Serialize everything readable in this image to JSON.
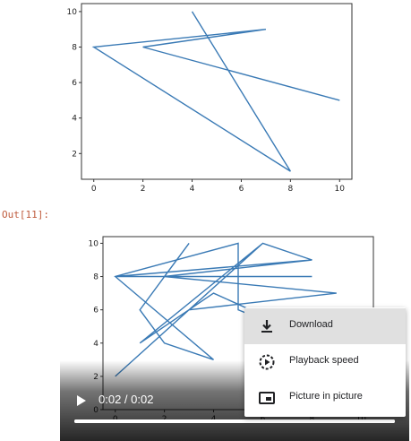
{
  "output_prompt": "Out[11]:",
  "chart_data": [
    {
      "type": "line",
      "x": [
        4,
        8,
        0,
        7,
        2,
        10
      ],
      "y": [
        10,
        1,
        8,
        9,
        8,
        5
      ],
      "xlim": [
        -0.5,
        10.5
      ],
      "ylim": [
        0.55,
        10.45
      ],
      "xticks": [
        0,
        2,
        4,
        6,
        8,
        10
      ],
      "yticks": [
        2,
        4,
        6,
        8,
        10
      ],
      "color": "#3a7ab5"
    },
    {
      "type": "line",
      "x": [
        8,
        2,
        3,
        1,
        2,
        4,
        0,
        5,
        5,
        10,
        4,
        1,
        6,
        8,
        0,
        8,
        2,
        9,
        3,
        6,
        0
      ],
      "y": [
        9,
        8,
        10,
        6,
        4,
        3,
        8,
        10,
        6,
        3,
        7,
        4,
        10,
        9,
        8,
        8,
        8,
        7,
        6,
        10,
        2
      ],
      "xlim": [
        -0.5,
        10.5
      ],
      "ylim": [
        0,
        10.4
      ],
      "xticks": [
        0,
        2,
        4,
        6,
        8,
        10
      ],
      "yticks": [
        0,
        2,
        4,
        6,
        8,
        10
      ],
      "color": "#3a7ab5"
    }
  ],
  "video": {
    "time_text": "0:02 / 0:02",
    "progress": 1.0
  },
  "menu": {
    "items": [
      {
        "label": "Download",
        "icon": "download-icon"
      },
      {
        "label": "Playback speed",
        "icon": "playback-speed-icon"
      },
      {
        "label": "Picture in picture",
        "icon": "picture-in-picture-icon"
      }
    ]
  }
}
